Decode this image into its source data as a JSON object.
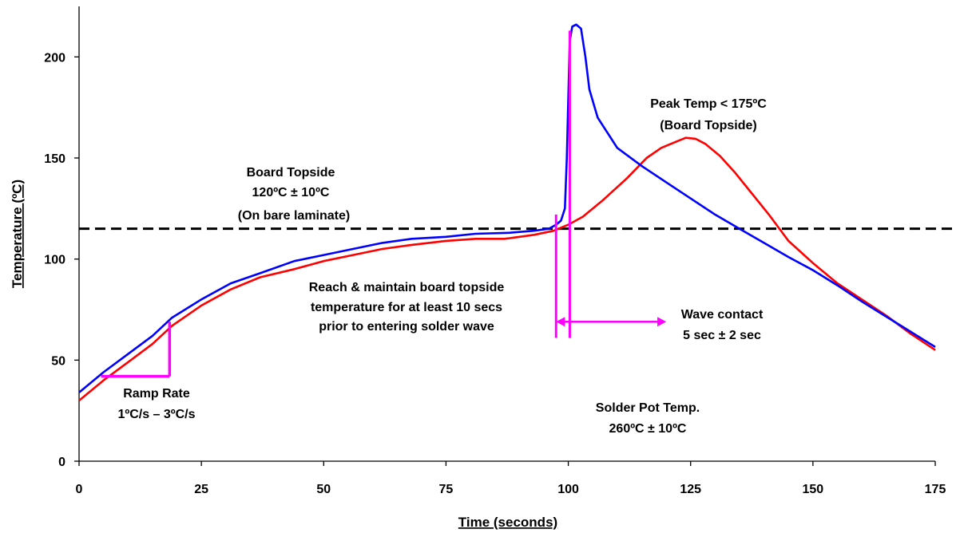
{
  "chart_data": {
    "type": "line",
    "xlabel": "Time (seconds)",
    "ylabel": "Temperature (ºC)",
    "xlim": [
      0,
      175
    ],
    "ylim": [
      0,
      225
    ],
    "xticks": [
      0,
      25,
      50,
      75,
      100,
      125,
      150,
      175
    ],
    "yticks": [
      0,
      50,
      100,
      150,
      200
    ],
    "grid": false,
    "legend": "none",
    "series": [
      {
        "color": "#0000ff",
        "points": [
          [
            0,
            34
          ],
          [
            5,
            44
          ],
          [
            10,
            53
          ],
          [
            15,
            62
          ],
          [
            19,
            71
          ],
          [
            25,
            80
          ],
          [
            31,
            88
          ],
          [
            37,
            93
          ],
          [
            44,
            99
          ],
          [
            50,
            102
          ],
          [
            56,
            105
          ],
          [
            62,
            108
          ],
          [
            68,
            110
          ],
          [
            75,
            111
          ],
          [
            81,
            112.5
          ],
          [
            88,
            113
          ],
          [
            93,
            114
          ],
          [
            96,
            115
          ],
          [
            97.5,
            117
          ],
          [
            98.5,
            119
          ],
          [
            99.3,
            125
          ],
          [
            99.7,
            150
          ],
          [
            100,
            180
          ],
          [
            100.3,
            208
          ],
          [
            100.8,
            215
          ],
          [
            101.6,
            216
          ],
          [
            102.6,
            214
          ],
          [
            103.5,
            200
          ],
          [
            104.3,
            184
          ],
          [
            106,
            170
          ],
          [
            110,
            155
          ],
          [
            115,
            146
          ],
          [
            120,
            138
          ],
          [
            125,
            130
          ],
          [
            130,
            122
          ],
          [
            135,
            115
          ],
          [
            140,
            108
          ],
          [
            145,
            101
          ],
          [
            150,
            94.5
          ],
          [
            155,
            87
          ],
          [
            160,
            79
          ],
          [
            165,
            71.5
          ],
          [
            170,
            64
          ],
          [
            175,
            56.5
          ]
        ]
      },
      {
        "color": "#ff0000",
        "points": [
          [
            0,
            30
          ],
          [
            5,
            40
          ],
          [
            10,
            49
          ],
          [
            15,
            58
          ],
          [
            19,
            67
          ],
          [
            25,
            77
          ],
          [
            31,
            85
          ],
          [
            37,
            91
          ],
          [
            44,
            95
          ],
          [
            50,
            99
          ],
          [
            56,
            102
          ],
          [
            62,
            105
          ],
          [
            68,
            107
          ],
          [
            75,
            109
          ],
          [
            81,
            110
          ],
          [
            87,
            110
          ],
          [
            93,
            112
          ],
          [
            97,
            114
          ],
          [
            100,
            117
          ],
          [
            103,
            121
          ],
          [
            107,
            129
          ],
          [
            112,
            140
          ],
          [
            116,
            150
          ],
          [
            119,
            155
          ],
          [
            122,
            158
          ],
          [
            124,
            160
          ],
          [
            126,
            159.5
          ],
          [
            128,
            157
          ],
          [
            131,
            151
          ],
          [
            134,
            143
          ],
          [
            137,
            134
          ],
          [
            141,
            122
          ],
          [
            145,
            109
          ],
          [
            150,
            98
          ],
          [
            155,
            88
          ],
          [
            160,
            80
          ],
          [
            165,
            72
          ],
          [
            170,
            63
          ],
          [
            175,
            55
          ]
        ]
      }
    ],
    "reference_line": {
      "y": 115,
      "style": "dashed",
      "color": "#000000"
    },
    "markers": {
      "color": "#ff00ff",
      "ramp_horizontal": {
        "x_from": 4.5,
        "x_to": 18.5,
        "y": 42
      },
      "ramp_vertical": {
        "x": 18.5,
        "y_from": 42,
        "y_to": 69
      },
      "contact_start": {
        "x": 97.5,
        "y_from": 61,
        "y_to": 122
      },
      "contact_end": {
        "x": 100.3,
        "y_from": 61,
        "y_to": 213
      },
      "arrow": {
        "x_from": 97.5,
        "x_to": 120,
        "y": 69
      }
    },
    "annotations": {
      "board_topside": {
        "line1": "Board Topside",
        "line2": "120ºC ± 10ºC",
        "line3": "(On bare laminate)"
      },
      "peak_temp": {
        "line1": "Peak Temp < 175ºC",
        "line2": "(Board  Topside)"
      },
      "reach": {
        "line1": "Reach & maintain board topside",
        "line2": "temperature for at least 10 secs",
        "line3": "prior to entering solder wave"
      },
      "wave_contact": {
        "line1": "Wave contact",
        "line2": "5 sec  ±  2 sec"
      },
      "ramp_rate": {
        "line1": "Ramp Rate",
        "line2": "1ºC/s – 3ºC/s"
      },
      "solder_pot": {
        "line1": "Solder Pot Temp.",
        "line2": "260ºC ± 10ºC"
      }
    }
  }
}
